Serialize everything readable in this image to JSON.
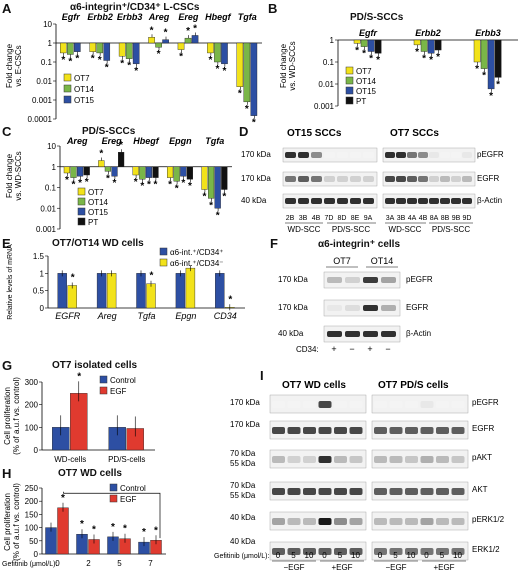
{
  "colors": {
    "yellow": "#f2e21a",
    "green": "#7ab648",
    "blue": "#2d4fa3",
    "black": "#111111",
    "red": "#e03a2f",
    "blot_bg": "#f2f2f2"
  },
  "panelA": {
    "label": "A",
    "title": "α6-integrin⁺/CD34⁺ L-CSCs",
    "ylabel": "Fold change\nvs. E-CSCs",
    "yticks": [
      "10",
      "1",
      "0.1",
      "0.01",
      "0.001",
      "0.0001"
    ],
    "legend": [
      "OT7",
      "OT14",
      "OT15"
    ]
  },
  "panelB": {
    "label": "B",
    "title": "PD/S-SCCs",
    "ylabel": "Fold change\nvs. WD-SCCs",
    "yticks": [
      "1",
      "0.1",
      "0.01",
      "0.001"
    ],
    "legend": [
      "OT7",
      "OT14",
      "OT15",
      "PT"
    ]
  },
  "panelC": {
    "label": "C",
    "title": "PD/S-SCCs",
    "ylabel": "Fold change\nvs. WD-SCCs",
    "yticks": [
      "10",
      "1",
      "0.1",
      "0.01",
      "0.001"
    ],
    "legend": [
      "OT7",
      "OT14",
      "OT15",
      "PT"
    ]
  },
  "panelD": {
    "label": "D",
    "left_title": "OT15 SCCs",
    "right_title": "OT7 SCCs",
    "mw": [
      "170 kDa",
      "170 kDa",
      "40 kDa"
    ],
    "bands": [
      "pEGFR",
      "EGFR",
      "β-Actin"
    ],
    "left_lanes": [
      "2B",
      "3B",
      "4B",
      "7D",
      "8D",
      "8E",
      "9A"
    ],
    "right_lanes": [
      "3A",
      "3B",
      "4A",
      "4B",
      "8A",
      "8B",
      "9B",
      "9D"
    ],
    "groups": [
      "WD-SCC",
      "PD/S-SCC",
      "WD-SCC",
      "PD/S-SCC"
    ]
  },
  "panelE": {
    "label": "E",
    "title": "OT7/OT14 WD cells",
    "ylabel": "Relative levels of mRNA",
    "yticks": [
      "1.5",
      "1",
      "0.5",
      "0"
    ],
    "legend": [
      "α6-int.⁺/CD34⁺",
      "α6-int.⁺/CD34⁻"
    ]
  },
  "panelF": {
    "label": "F",
    "title": "α6-integrin⁺ cells",
    "groups": [
      "OT7",
      "OT14"
    ],
    "mw": [
      "170 kDa",
      "170 kDa",
      "40 kDa"
    ],
    "bands": [
      "pEGFR",
      "EGFR",
      "β-Actin"
    ],
    "cd34_label": "CD34:",
    "cd34": [
      "+",
      "−",
      "+",
      "−"
    ]
  },
  "panelG": {
    "label": "G",
    "title": "OT7 isolated cells",
    "ylabel": "Cell proliferation\n(% of a.u.f vs. control)",
    "yticks": [
      "300",
      "200",
      "100",
      "0"
    ],
    "legend": [
      "Control",
      "EGF"
    ]
  },
  "panelH": {
    "label": "H",
    "title": "OT7 WD cells",
    "ylabel": "Cell proliferation\n(% of a.u.f vs. control)",
    "yticks": [
      "250",
      "200",
      "150",
      "100",
      "50",
      "0"
    ],
    "legend": [
      "Control",
      "EGF"
    ],
    "xlabel": "Gefitinib (μmol/L):"
  },
  "panelI": {
    "label": "I",
    "left_title": "OT7 WD cells",
    "right_title": "OT7 PD/S cells",
    "mw": [
      "170 kDa",
      "170 kDa",
      "70 kDa",
      "55 kDa",
      "70 kDa",
      "55 kDa",
      "40 kDa",
      "40 kDa"
    ],
    "bands": [
      "pEGFR",
      "EGFR",
      "pAKT",
      "AKT",
      "pERK1/2",
      "ERK1/2"
    ],
    "gef_label": "Gefitinib (μmol/L):",
    "doses": [
      "0",
      "5",
      "10",
      "0",
      "5",
      "10"
    ],
    "conditions": [
      "−EGF",
      "+EGF",
      "−EGF",
      "+EGF"
    ]
  },
  "chart_data": [
    {
      "id": "A",
      "type": "bar",
      "yscale": "log",
      "ylim": [
        0.0001,
        10
      ],
      "title": "α6-integrin⁺/CD34⁺ L-CSCs",
      "ylabel": "Fold change vs. E-CSCs",
      "categories": [
        "Egfr",
        "Erbb2",
        "Erbb3",
        "Areg",
        "Ereg",
        "Hbegf",
        "Tgfa"
      ],
      "series": [
        {
          "name": "OT7",
          "values": [
            0.3,
            0.35,
            0.2,
            2.0,
            0.45,
            0.3,
            0.005
          ]
        },
        {
          "name": "OT14",
          "values": [
            0.25,
            0.3,
            0.15,
            0.6,
            1.8,
            0.1,
            0.0008
          ]
        },
        {
          "name": "OT15",
          "values": [
            0.35,
            0.12,
            0.08,
            1.5,
            2.5,
            0.08,
            0.00015
          ]
        }
      ]
    },
    {
      "id": "B",
      "type": "bar",
      "yscale": "log",
      "ylim": [
        0.001,
        1
      ],
      "title": "PD/S-SCCs",
      "ylabel": "Fold change vs. WD-SCCs",
      "categories": [
        "Egfr",
        "Erbb2",
        "Erbb3"
      ],
      "series": [
        {
          "name": "OT7",
          "values": [
            0.7,
            0.6,
            0.1
          ]
        },
        {
          "name": "OT14",
          "values": [
            0.5,
            0.3,
            0.05
          ]
        },
        {
          "name": "OT15",
          "values": [
            0.3,
            0.25,
            0.006
          ]
        },
        {
          "name": "PT",
          "values": [
            0.25,
            0.35,
            0.02
          ]
        }
      ]
    },
    {
      "id": "C",
      "type": "bar",
      "yscale": "log",
      "ylim": [
        0.001,
        10
      ],
      "title": "PD/S-SCCs",
      "ylabel": "Fold change vs. WD-SCCs",
      "categories": [
        "Areg",
        "Ereg",
        "Hbegf",
        "Epgn",
        "Tgfa"
      ],
      "series": [
        {
          "name": "OT7",
          "values": [
            0.5,
            2.0,
            0.4,
            0.3,
            0.08
          ]
        },
        {
          "name": "OT14",
          "values": [
            0.3,
            0.6,
            0.25,
            0.2,
            0.03
          ]
        },
        {
          "name": "OT15",
          "values": [
            0.35,
            0.35,
            0.3,
            0.35,
            0.01
          ]
        },
        {
          "name": "PT",
          "values": [
            0.4,
            5.0,
            0.3,
            0.25,
            0.08
          ]
        }
      ]
    },
    {
      "id": "E",
      "type": "bar",
      "ylim": [
        0,
        1.5
      ],
      "title": "OT7/OT14 WD cells",
      "ylabel": "Relative levels of mRNA",
      "categories": [
        "EGFR",
        "Areg",
        "Tgfa",
        "Epgn",
        "CD34"
      ],
      "series": [
        {
          "name": "α6-int.⁺/CD34⁺",
          "values": [
            1.0,
            1.0,
            1.0,
            1.0,
            1.0
          ]
        },
        {
          "name": "α6-int.⁺/CD34⁻",
          "values": [
            0.65,
            1.0,
            0.7,
            1.15,
            0.02
          ]
        }
      ]
    },
    {
      "id": "G",
      "type": "bar",
      "ylim": [
        0,
        300
      ],
      "title": "OT7 isolated cells",
      "ylabel": "Cell proliferation (% of a.u.f vs. control)",
      "categories": [
        "WD-cells",
        "PD/S-cells"
      ],
      "series": [
        {
          "name": "Control",
          "values": [
            100,
            100
          ]
        },
        {
          "name": "EGF",
          "values": [
            250,
            95
          ]
        }
      ]
    },
    {
      "id": "H",
      "type": "bar",
      "ylim": [
        0,
        250
      ],
      "title": "OT7 WD cells",
      "ylabel": "Cell proliferation (% of a.u.f vs. control)",
      "xlabel": "Gefitinib (μmol/L)",
      "categories": [
        "0",
        "2",
        "5",
        "7"
      ],
      "series": [
        {
          "name": "Control",
          "values": [
            100,
            75,
            65,
            45
          ]
        },
        {
          "name": "EGF",
          "values": [
            175,
            55,
            58,
            52
          ]
        }
      ]
    }
  ]
}
